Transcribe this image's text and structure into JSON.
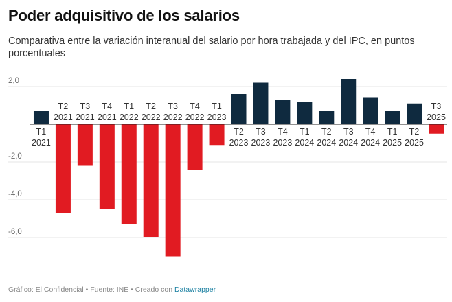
{
  "title": "Poder adquisitivo de los salarios",
  "subtitle": "Comparativa entre la variación interanual del salario por hora trabajada y del IPC, en puntos porcentuales",
  "footer": {
    "text": "Gráfico: El Confidencial • Fuente: INE • Creado con ",
    "link": "Datawrapper"
  },
  "colors": {
    "positive": "#0f2a3f",
    "negative": "#e11b22",
    "grid": "#e5e5e5",
    "zero": "#222222"
  },
  "chart_data": {
    "type": "bar",
    "title": "Poder adquisitivo de los salarios",
    "xlabel": "",
    "ylabel": "",
    "ylim": [
      -7.0,
      2.5
    ],
    "yticks": [
      2.0,
      0,
      -2.0,
      -4.0,
      -6.0
    ],
    "ytick_labels": [
      "2,0",
      "",
      "-2,0",
      "-4,0",
      "-6,0"
    ],
    "categories": [
      [
        "T1",
        "2021"
      ],
      [
        "T2",
        "2021"
      ],
      [
        "T3",
        "2021"
      ],
      [
        "T4",
        "2021"
      ],
      [
        "T1",
        "2022"
      ],
      [
        "T2",
        "2022"
      ],
      [
        "T3",
        "2022"
      ],
      [
        "T4",
        "2022"
      ],
      [
        "T1",
        "2023"
      ],
      [
        "T2",
        "2023"
      ],
      [
        "T3",
        "2023"
      ],
      [
        "T4",
        "2023"
      ],
      [
        "T1",
        "2024"
      ],
      [
        "T2",
        "2024"
      ],
      [
        "T3",
        "2024"
      ],
      [
        "T4",
        "2024"
      ],
      [
        "T1",
        "2025"
      ],
      [
        "T2",
        "2025"
      ],
      [
        "T3",
        "2025"
      ]
    ],
    "values": [
      0.7,
      -4.7,
      -2.2,
      -4.5,
      -5.3,
      -6.0,
      -7.0,
      -2.4,
      -1.1,
      1.6,
      2.2,
      1.3,
      1.2,
      0.7,
      2.4,
      1.4,
      0.7,
      1.1,
      -0.5
    ]
  }
}
